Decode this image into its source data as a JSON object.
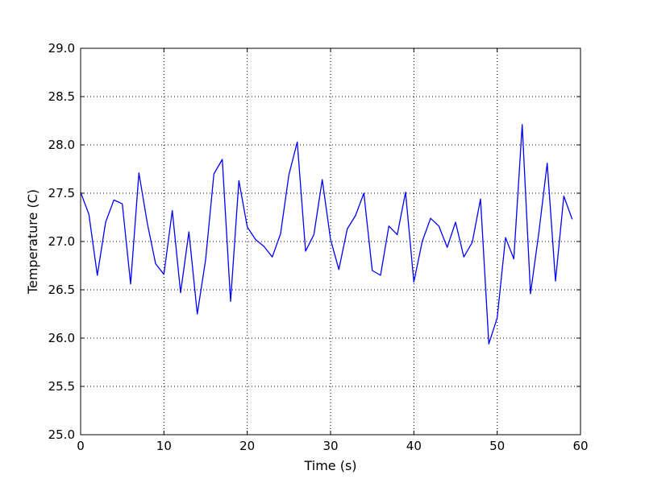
{
  "chart_data": {
    "type": "line",
    "title": "",
    "xlabel": "Time (s)",
    "ylabel": "Temperature (C)",
    "xlim": [
      0,
      60
    ],
    "ylim": [
      25.0,
      29.0
    ],
    "xticks": [
      0,
      10,
      20,
      30,
      40,
      50,
      60
    ],
    "xtick_labels": [
      "0",
      "10",
      "20",
      "30",
      "40",
      "50",
      "60"
    ],
    "yticks": [
      25.0,
      25.5,
      26.0,
      26.5,
      27.0,
      27.5,
      28.0,
      28.5,
      29.0
    ],
    "ytick_labels": [
      "25.0",
      "25.5",
      "26.0",
      "26.5",
      "27.0",
      "27.5",
      "28.0",
      "28.5",
      "29.0"
    ],
    "grid": true,
    "legend": "none",
    "series": [
      {
        "color": "#0000ff",
        "x": [
          0,
          1,
          2,
          3,
          4,
          5,
          6,
          7,
          8,
          9,
          10,
          11,
          12,
          13,
          14,
          15,
          16,
          17,
          18,
          19,
          20,
          21,
          22,
          23,
          24,
          25,
          26,
          27,
          28,
          29,
          30,
          31,
          32,
          33,
          34,
          35,
          36,
          37,
          38,
          39,
          40,
          41,
          42,
          43,
          44,
          45,
          46,
          47,
          48,
          49,
          50,
          51,
          52,
          53,
          54,
          55,
          56,
          57,
          58,
          59
        ],
        "values": [
          27.51,
          27.28,
          26.65,
          27.2,
          27.43,
          27.39,
          26.56,
          27.71,
          27.19,
          26.77,
          26.66,
          27.32,
          26.47,
          27.1,
          26.25,
          26.81,
          27.7,
          27.85,
          26.38,
          27.63,
          27.15,
          27.02,
          26.95,
          26.84,
          27.08,
          27.69,
          28.03,
          26.9,
          27.07,
          27.64,
          27.02,
          26.71,
          27.13,
          27.27,
          27.5,
          26.7,
          26.65,
          27.16,
          27.07,
          27.51,
          26.58,
          27.0,
          27.24,
          27.16,
          26.94,
          27.2,
          26.84,
          26.99,
          27.44,
          25.94,
          26.21,
          27.04,
          26.82,
          28.21,
          26.46,
          27.09,
          27.81,
          26.59,
          27.47,
          27.23
        ]
      }
    ]
  }
}
